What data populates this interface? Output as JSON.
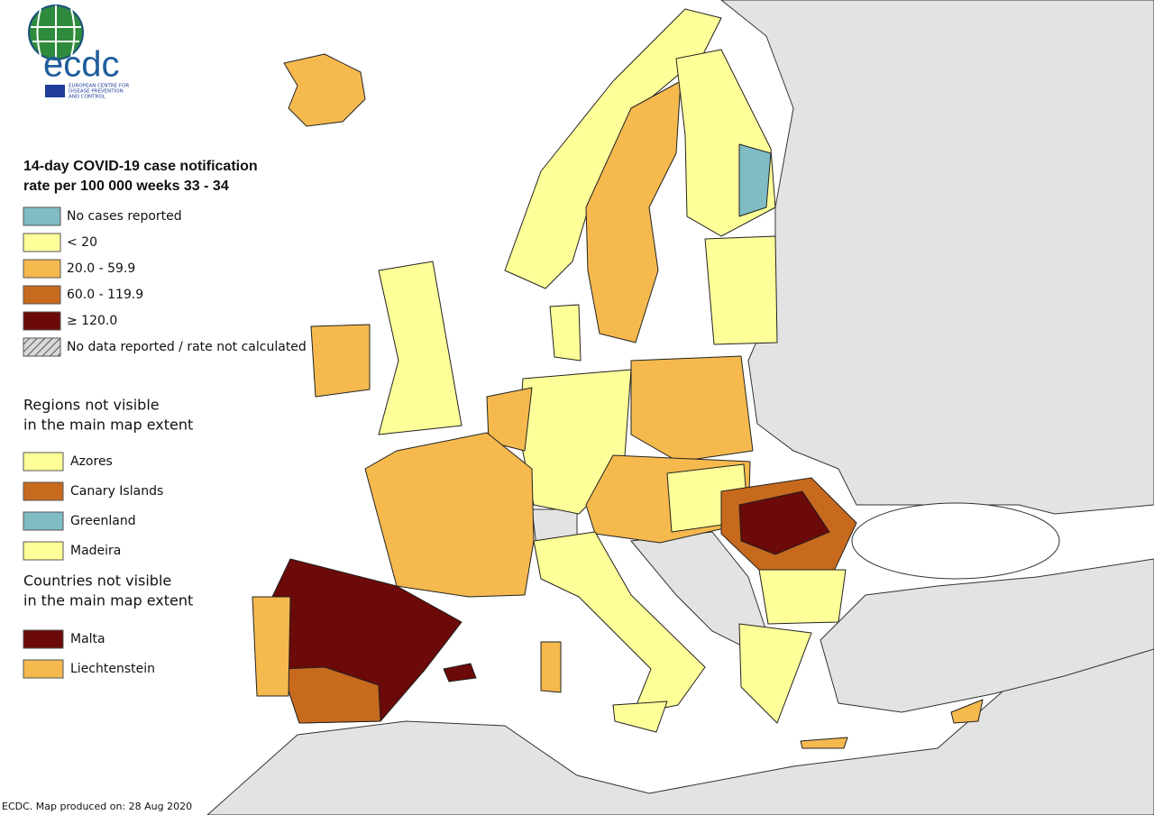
{
  "logo": {
    "name": "ecdc",
    "lines": [
      "EUROPEAN CENTRE FOR",
      "DISEASE PREVENTION",
      "AND CONTROL"
    ]
  },
  "legend": {
    "title_lines": [
      "14-day COVID-19 case notification",
      "rate per 100 000 weeks 33 - 34"
    ],
    "items": [
      {
        "label": "No cases reported",
        "color": "#7fbcc4"
      },
      {
        "label": "< 20",
        "color": "#ffff99"
      },
      {
        "label": "20.0 - 59.9",
        "color": "#f5b94e"
      },
      {
        "label": "60.0 - 119.9",
        "color": "#c86a1e"
      },
      {
        "label": "≥ 120.0",
        "color": "#6b0a08"
      },
      {
        "label": "No data reported / rate not calculated",
        "pattern": "hatched"
      }
    ]
  },
  "regions": {
    "title_lines": [
      "Regions not visible",
      "in the main map extent"
    ],
    "items": [
      {
        "label": "Azores",
        "color": "#ffff99"
      },
      {
        "label": "Canary Islands",
        "color": "#c86a1e"
      },
      {
        "label": "Greenland",
        "color": "#7fbcc4"
      },
      {
        "label": "Madeira",
        "color": "#ffff99"
      }
    ]
  },
  "countries": {
    "title_lines": [
      "Countries not visible",
      "in the main map extent"
    ],
    "items": [
      {
        "label": "Malta",
        "color": "#6b0a08"
      },
      {
        "label": "Liechtenstein",
        "color": "#f5b94e"
      }
    ]
  },
  "footer": "ECDC. Map produced on: 28 Aug 2020"
}
